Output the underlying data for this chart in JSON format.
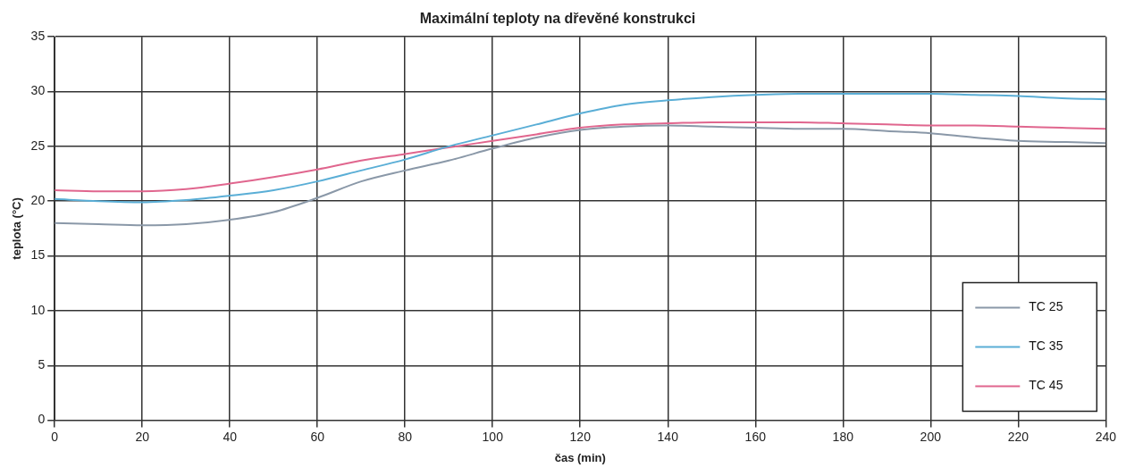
{
  "chart_data": {
    "type": "line",
    "title": "Maximální teploty na dřevěné konstrukci",
    "xlabel": "čas (min)",
    "ylabel": "teplota (°C)",
    "x": [
      0,
      10,
      20,
      30,
      40,
      50,
      60,
      70,
      80,
      90,
      100,
      110,
      120,
      130,
      140,
      150,
      160,
      170,
      180,
      190,
      200,
      210,
      220,
      230,
      240
    ],
    "xlim": [
      0,
      240
    ],
    "xticks": [
      0,
      20,
      40,
      60,
      80,
      100,
      120,
      140,
      160,
      180,
      200,
      220,
      240
    ],
    "ylim": [
      0,
      35
    ],
    "yticks": [
      0,
      5,
      10,
      15,
      20,
      25,
      30,
      35
    ],
    "grid": true,
    "legend": "bottom right",
    "marker": "none",
    "line_style": "solid",
    "series": [
      {
        "name": "TC 25",
        "color": "#8a98a8",
        "values": [
          18.0,
          17.9,
          17.8,
          17.9,
          18.3,
          19.0,
          20.3,
          21.8,
          22.8,
          23.7,
          24.8,
          25.8,
          26.5,
          26.8,
          26.9,
          26.8,
          26.7,
          26.6,
          26.6,
          26.4,
          26.2,
          25.8,
          25.5,
          25.4,
          25.3
        ]
      },
      {
        "name": "TC 35",
        "color": "#5aaed6",
        "values": [
          20.2,
          20.0,
          19.9,
          20.1,
          20.5,
          21.0,
          21.8,
          22.8,
          23.8,
          25.0,
          26.0,
          27.0,
          28.0,
          28.8,
          29.2,
          29.5,
          29.7,
          29.8,
          29.8,
          29.8,
          29.8,
          29.7,
          29.6,
          29.4,
          29.3
        ]
      },
      {
        "name": "TC 45",
        "color": "#e0668e",
        "values": [
          21.0,
          20.9,
          20.9,
          21.1,
          21.6,
          22.2,
          22.9,
          23.7,
          24.3,
          24.9,
          25.5,
          26.1,
          26.7,
          27.0,
          27.1,
          27.2,
          27.2,
          27.2,
          27.1,
          27.0,
          26.9,
          26.9,
          26.8,
          26.7,
          26.6
        ]
      }
    ]
  }
}
